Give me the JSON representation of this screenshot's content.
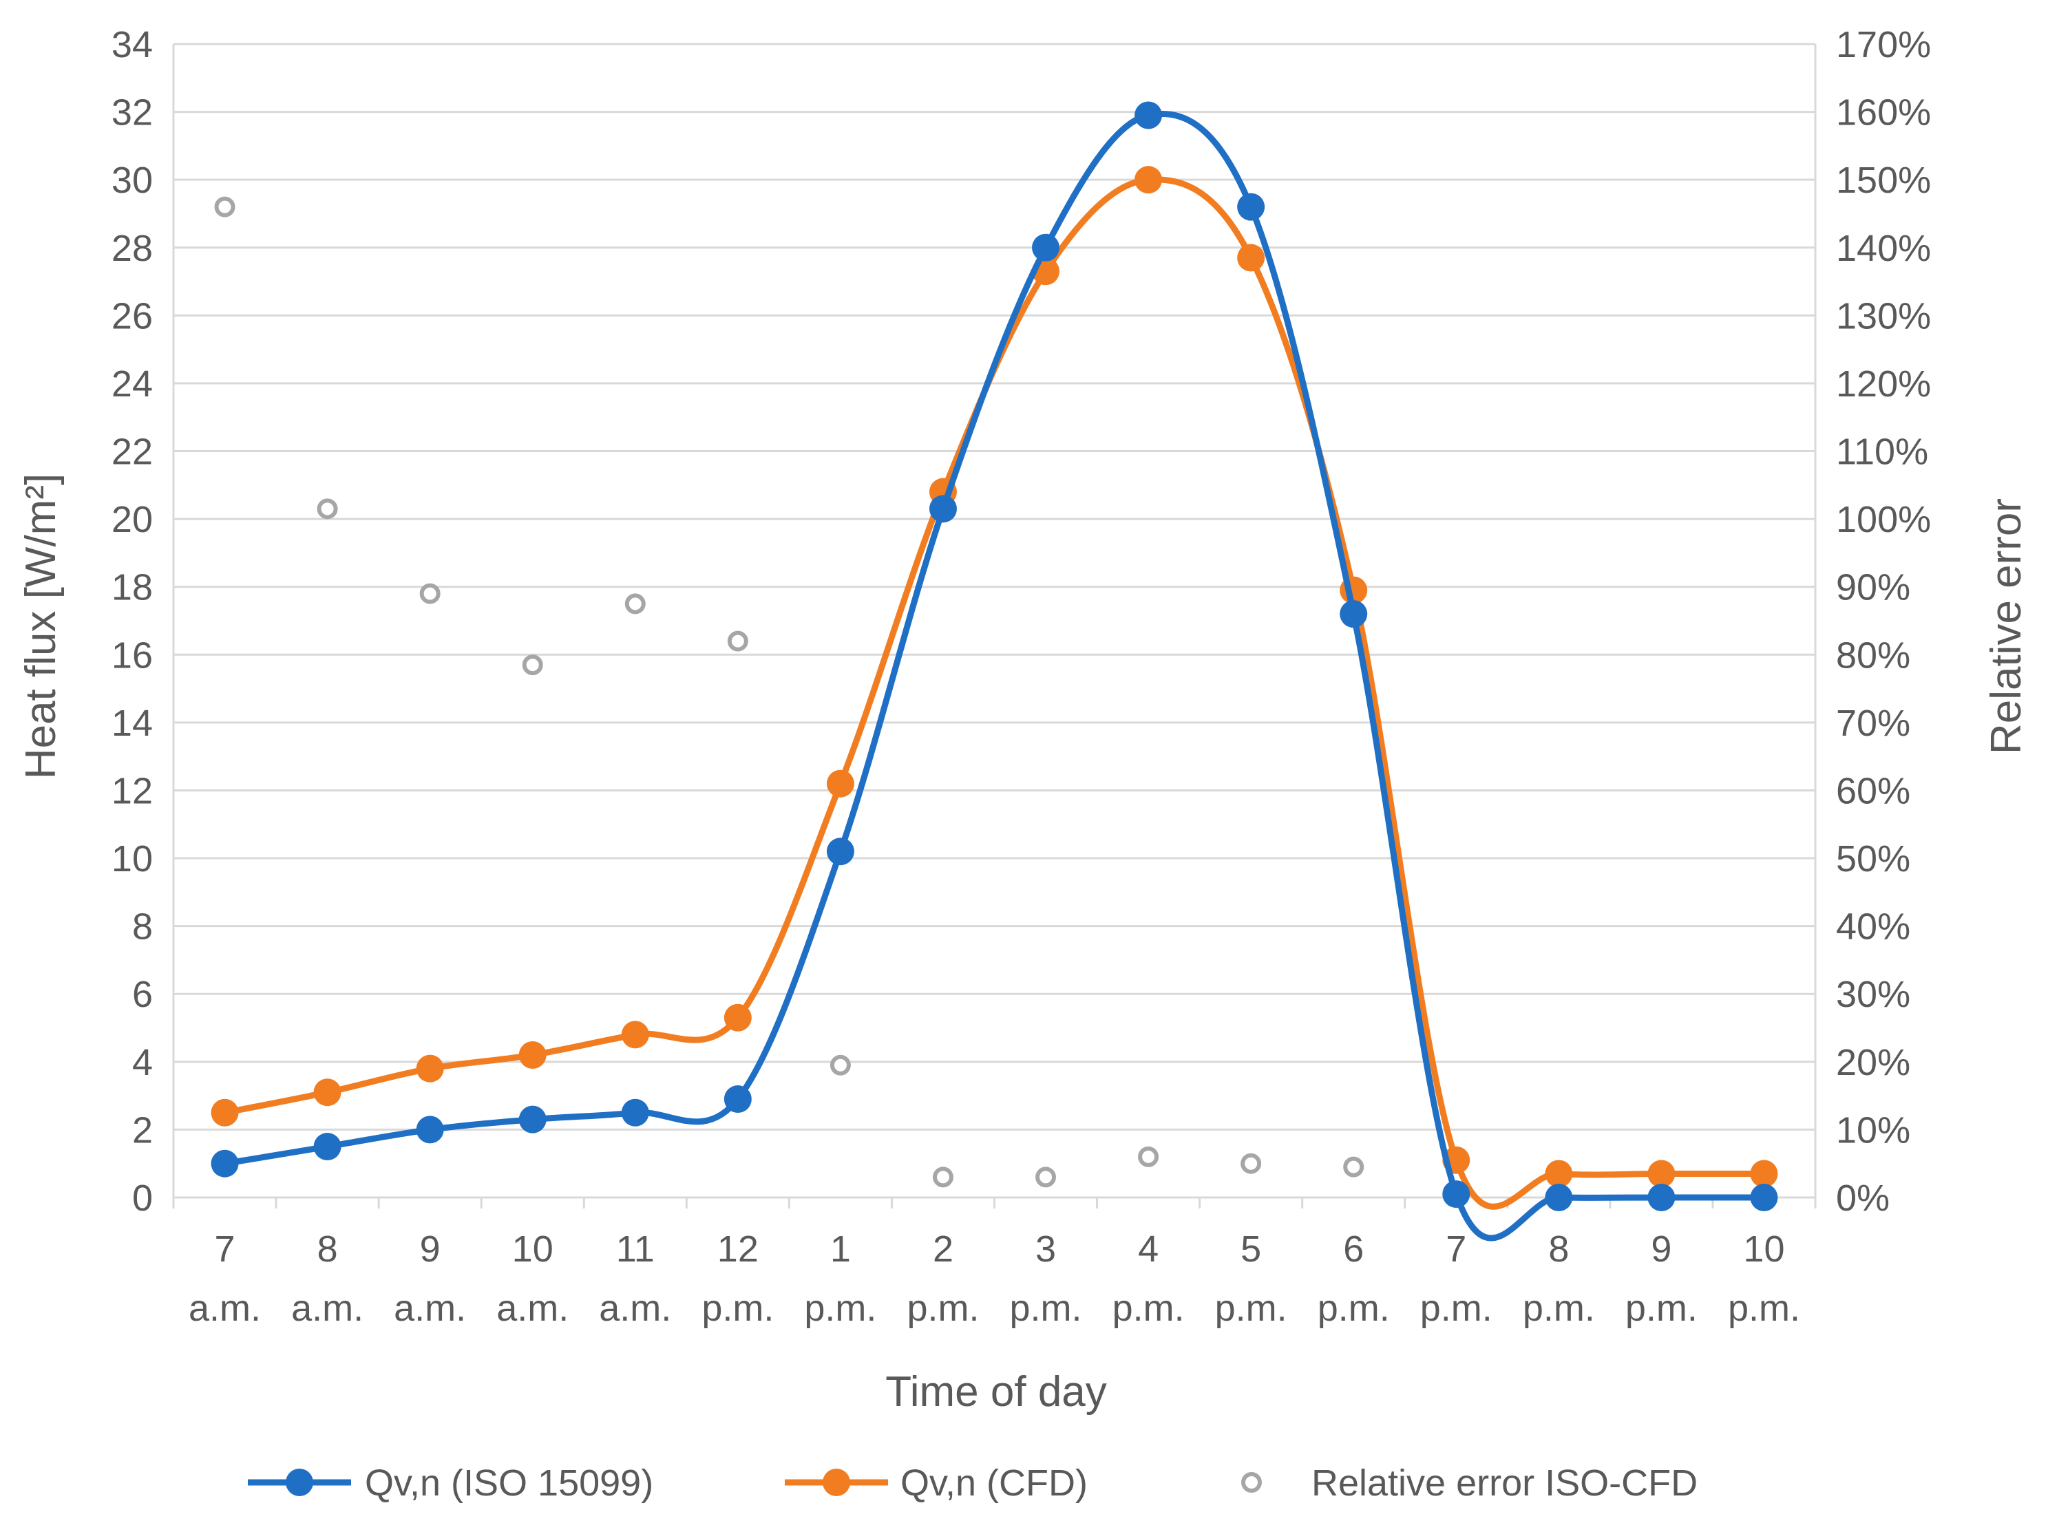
{
  "chart_data": {
    "type": "line",
    "title": "",
    "xlabel": "Time of day",
    "ylabel": "Heat flux [W/m²]",
    "ylabel_secondary": "Relative error",
    "categories": [
      [
        "7",
        "a.m."
      ],
      [
        "8",
        "a.m."
      ],
      [
        "9",
        "a.m."
      ],
      [
        "10",
        "a.m."
      ],
      [
        "11",
        "a.m."
      ],
      [
        "12",
        "p.m."
      ],
      [
        "1",
        "p.m."
      ],
      [
        "2",
        "p.m."
      ],
      [
        "3",
        "p.m."
      ],
      [
        "4",
        "p.m."
      ],
      [
        "5",
        "p.m."
      ],
      [
        "6",
        "p.m."
      ],
      [
        "7",
        "p.m."
      ],
      [
        "8",
        "p.m."
      ],
      [
        "9",
        "p.m."
      ],
      [
        "10",
        "p.m."
      ]
    ],
    "ylim": [
      0,
      34
    ],
    "ylim_secondary": [
      0,
      1.7
    ],
    "yticks": [
      0,
      2,
      4,
      6,
      8,
      10,
      12,
      14,
      16,
      18,
      20,
      22,
      24,
      26,
      28,
      30,
      32,
      34
    ],
    "yticks_secondary": [
      "0%",
      "10%",
      "20%",
      "30%",
      "40%",
      "50%",
      "60%",
      "70%",
      "80%",
      "90%",
      "100%",
      "110%",
      "120%",
      "130%",
      "140%",
      "150%",
      "160%",
      "170%"
    ],
    "grid": true,
    "legend_position": "bottom",
    "series": [
      {
        "name": "Qv,n (ISO 15099)",
        "axis": "left",
        "style": "smooth-line-markers",
        "color": "#1F6FC5",
        "values": [
          1.0,
          1.5,
          2.0,
          2.3,
          2.5,
          2.9,
          10.2,
          20.3,
          28.0,
          31.9,
          29.2,
          17.2,
          0.1,
          0.0,
          0.0,
          0.0
        ]
      },
      {
        "name": "Qv,n (CFD)",
        "axis": "left",
        "style": "smooth-line-markers",
        "color": "#F27D21",
        "values": [
          2.5,
          3.1,
          3.8,
          4.2,
          4.8,
          5.3,
          12.2,
          20.8,
          27.3,
          30.0,
          27.7,
          17.9,
          1.1,
          0.7,
          0.7,
          0.7
        ]
      },
      {
        "name": "Relative error ISO-CFD",
        "axis": "right",
        "style": "hollow-markers",
        "color": "#A6A6A6",
        "values": [
          1.46,
          1.015,
          0.89,
          0.785,
          0.875,
          0.82,
          0.195,
          0.03,
          0.03,
          0.06,
          0.05,
          0.045,
          null,
          null,
          null,
          null
        ]
      }
    ]
  }
}
